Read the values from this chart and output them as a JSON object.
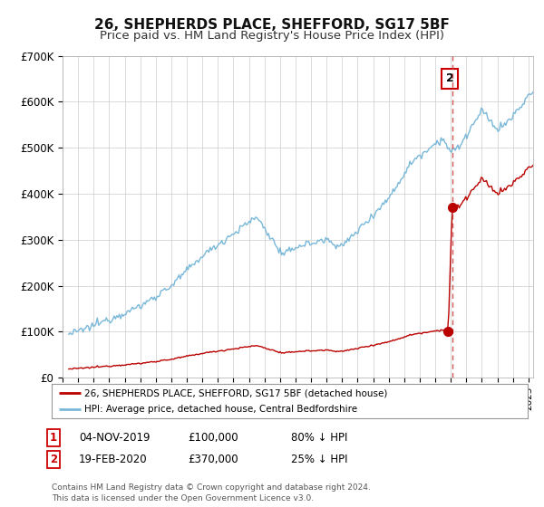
{
  "title": "26, SHEPHERDS PLACE, SHEFFORD, SG17 5BF",
  "subtitle": "Price paid vs. HM Land Registry's House Price Index (HPI)",
  "hpi_label": "HPI: Average price, detached house, Central Bedfordshire",
  "property_label": "26, SHEPHERDS PLACE, SHEFFORD, SG17 5BF (detached house)",
  "transaction1": {
    "date": "04-NOV-2019",
    "price": 100000,
    "hpi_pct": "80% ↓ HPI",
    "num": 1
  },
  "transaction2": {
    "date": "19-FEB-2020",
    "price": 370000,
    "hpi_pct": "25% ↓ HPI",
    "num": 2
  },
  "hpi_color": "#7ab8d9",
  "property_color": "#bb0000",
  "dashed_color": "#cc4444",
  "grid_color": "#cccccc",
  "bg_color": "#ffffff",
  "plot_bg_color": "#ffffff",
  "footer": "Contains HM Land Registry data © Crown copyright and database right 2024.\nThis data is licensed under the Open Government Licence v3.0.",
  "ylim": [
    0,
    700000
  ],
  "yticks": [
    0,
    100000,
    200000,
    300000,
    400000,
    500000,
    600000,
    700000
  ],
  "ytick_labels": [
    "£0",
    "£100K",
    "£200K",
    "£300K",
    "£400K",
    "£500K",
    "£600K",
    "£700K"
  ],
  "xstart": 1995.4,
  "xend": 2025.3,
  "sale1_year_num": 2019.833,
  "sale1_price": 100000,
  "sale2_year_num": 2020.083,
  "sale2_price": 370000
}
